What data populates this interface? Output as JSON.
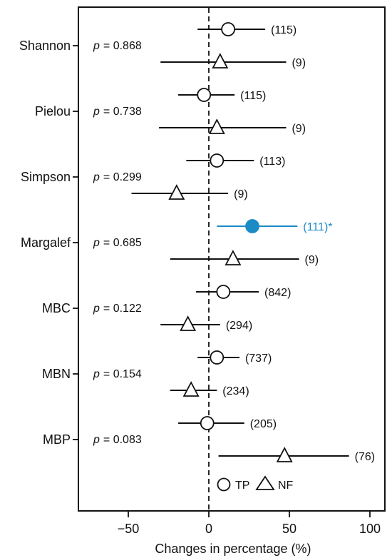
{
  "chart_data": {
    "type": "forest",
    "xlabel": "Changes in percentage (%)",
    "xlim": [
      -80,
      102
    ],
    "xticks": [
      -50,
      0,
      50,
      100
    ],
    "xtick_labels": [
      "−50",
      "0",
      "50",
      "100"
    ],
    "reference_line": 0,
    "grid": false,
    "legend": {
      "position": "bottom-right-inside",
      "entries": [
        {
          "name": "TP",
          "marker": "circle"
        },
        {
          "name": "NF",
          "marker": "triangle"
        }
      ]
    },
    "highlight_color": "#1B8BC6",
    "groups": [
      {
        "name": "Shannon",
        "p_label": "p",
        "p_value": "= 0.868",
        "rows": [
          {
            "series": "TP",
            "mean": 12,
            "lo": -7,
            "hi": 35,
            "n_label": "(115)"
          },
          {
            "series": "NF",
            "mean": 7,
            "lo": -30,
            "hi": 48,
            "n_label": "(9)"
          }
        ]
      },
      {
        "name": "Pielou",
        "p_label": "p",
        "p_value": "= 0.738",
        "rows": [
          {
            "series": "TP",
            "mean": -3,
            "lo": -19,
            "hi": 16,
            "n_label": "(115)"
          },
          {
            "series": "NF",
            "mean": 5,
            "lo": -31,
            "hi": 48,
            "n_label": "(9)"
          }
        ]
      },
      {
        "name": "Simpson",
        "p_label": "p",
        "p_value": "= 0.299",
        "rows": [
          {
            "series": "TP",
            "mean": 5,
            "lo": -14,
            "hi": 28,
            "n_label": "(113)"
          },
          {
            "series": "NF",
            "mean": -20,
            "lo": -48,
            "hi": 12,
            "n_label": "(9)"
          }
        ]
      },
      {
        "name": "Margalef",
        "p_label": "p",
        "p_value": "= 0.685",
        "rows": [
          {
            "series": "TP",
            "mean": 27,
            "lo": 5,
            "hi": 55,
            "n_label": "(111)*",
            "highlight": true
          },
          {
            "series": "NF",
            "mean": 15,
            "lo": -24,
            "hi": 56,
            "n_label": "(9)"
          }
        ]
      },
      {
        "name": "MBC",
        "p_label": "p",
        "p_value": "= 0.122",
        "rows": [
          {
            "series": "TP",
            "mean": 9,
            "lo": -8,
            "hi": 31,
            "n_label": "(842)"
          },
          {
            "series": "NF",
            "mean": -13,
            "lo": -30,
            "hi": 7,
            "n_label": "(294)"
          }
        ]
      },
      {
        "name": "MBN",
        "p_label": "p",
        "p_value": "= 0.154",
        "rows": [
          {
            "series": "TP",
            "mean": 5,
            "lo": -7,
            "hi": 19,
            "n_label": "(737)"
          },
          {
            "series": "NF",
            "mean": -11,
            "lo": -24,
            "hi": 5,
            "n_label": "(234)"
          }
        ]
      },
      {
        "name": "MBP",
        "p_label": "p",
        "p_value": "= 0.083",
        "rows": [
          {
            "series": "TP",
            "mean": -1,
            "lo": -19,
            "hi": 22,
            "n_label": "(205)"
          },
          {
            "series": "NF",
            "mean": 47,
            "lo": 6,
            "hi": 87,
            "n_label": "(76)"
          }
        ]
      }
    ]
  }
}
